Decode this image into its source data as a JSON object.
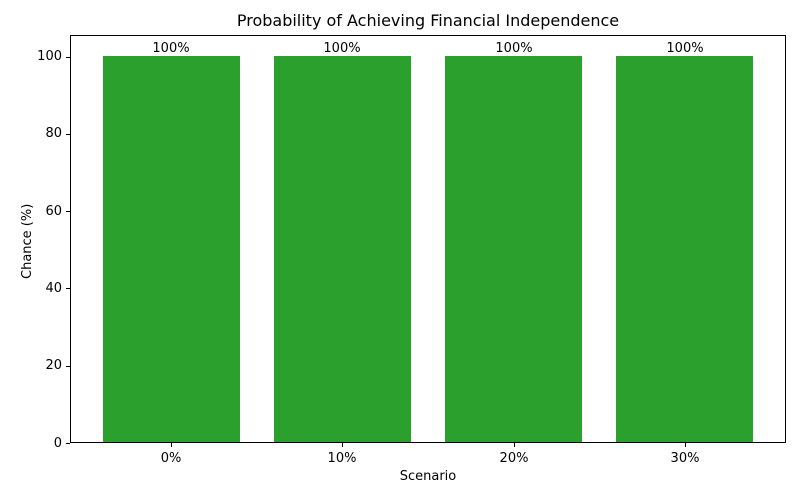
{
  "chart_data": {
    "type": "bar",
    "title": "Probability of Achieving Financial Independence",
    "xlabel": "Scenario",
    "ylabel": "Chance (%)",
    "categories": [
      "0%",
      "10%",
      "20%",
      "30%"
    ],
    "values": [
      100,
      100,
      100,
      100
    ],
    "bar_labels": [
      "100%",
      "100%",
      "100%",
      "100%"
    ],
    "yticks": [
      0,
      20,
      40,
      60,
      80,
      100
    ],
    "ylim": [
      0,
      105.6
    ],
    "bar_color": "#2ca02c",
    "grid": false,
    "legend_position": "none"
  }
}
